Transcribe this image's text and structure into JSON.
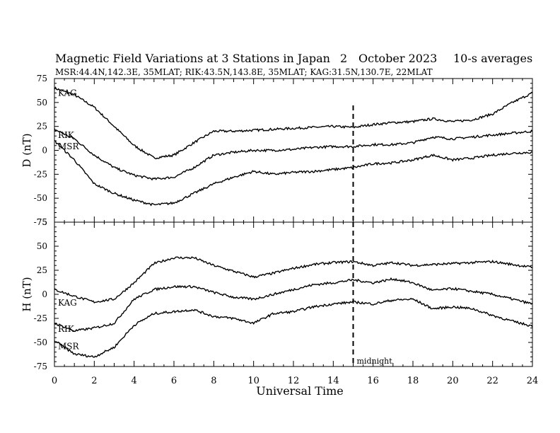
{
  "header": {
    "title": "Magnetic Field Variations at 3 Stations in Japan",
    "day": "2",
    "month_year": "October 2023",
    "averaging": "10-s averages",
    "stations_info": "MSR:44.4N,142.3E, 35MLAT;  RIK:43.5N,143.8E, 35MLAT;  KAG:31.5N,130.7E, 22MLAT"
  },
  "chart_data": [
    {
      "type": "line",
      "ylabel": "D (nT)",
      "ylim": [
        -75,
        75
      ],
      "yticks": [
        -75,
        -50,
        -25,
        0,
        25,
        50,
        75
      ],
      "xlim": [
        0,
        24
      ],
      "grid": false,
      "series": [
        {
          "name": "KAG",
          "x": [
            0,
            1,
            2,
            3,
            4,
            5,
            6,
            7,
            8,
            9,
            10,
            11,
            12,
            13,
            14,
            15,
            16,
            17,
            18,
            19,
            20,
            21,
            22,
            23,
            24
          ],
          "values": [
            65,
            58,
            45,
            25,
            5,
            -8,
            -5,
            8,
            20,
            20,
            21,
            22,
            23,
            24,
            25,
            24,
            27,
            29,
            30,
            33,
            30,
            32,
            38,
            50,
            60
          ]
        },
        {
          "name": "RIK",
          "x": [
            0,
            1,
            2,
            3,
            4,
            5,
            6,
            7,
            8,
            9,
            10,
            11,
            12,
            13,
            14,
            15,
            16,
            17,
            18,
            19,
            20,
            21,
            22,
            23,
            24
          ],
          "values": [
            22,
            12,
            -5,
            -18,
            -26,
            -30,
            -28,
            -18,
            -5,
            -2,
            0,
            0,
            1,
            3,
            4,
            4,
            6,
            6,
            8,
            14,
            12,
            14,
            16,
            18,
            20
          ]
        },
        {
          "name": "MSR",
          "x": [
            0,
            1,
            2,
            3,
            4,
            5,
            6,
            7,
            8,
            9,
            10,
            11,
            12,
            13,
            14,
            15,
            16,
            17,
            18,
            19,
            20,
            21,
            22,
            23,
            24
          ],
          "values": [
            10,
            -10,
            -35,
            -45,
            -52,
            -57,
            -55,
            -45,
            -35,
            -28,
            -22,
            -25,
            -23,
            -22,
            -20,
            -18,
            -14,
            -13,
            -10,
            -5,
            -10,
            -8,
            -5,
            -3,
            -2
          ]
        }
      ]
    },
    {
      "type": "line",
      "ylabel": "H (nT)",
      "ylim": [
        -75,
        75
      ],
      "yticks": [
        -75,
        -50,
        -25,
        0,
        25,
        50,
        75
      ],
      "xlim": [
        0,
        24
      ],
      "xticks": [
        0,
        2,
        4,
        6,
        8,
        10,
        12,
        14,
        16,
        18,
        20,
        22,
        24
      ],
      "xlabel": "Universal Time",
      "grid": false,
      "annotation": {
        "x": 15,
        "label": "midnight",
        "style": "dashed"
      },
      "series": [
        {
          "name": "KAG",
          "x": [
            0,
            1,
            2,
            3,
            4,
            5,
            6,
            7,
            8,
            9,
            10,
            11,
            12,
            13,
            14,
            15,
            16,
            17,
            18,
            19,
            20,
            21,
            22,
            23,
            24
          ],
          "values": [
            5,
            -2,
            -8,
            -5,
            12,
            32,
            38,
            38,
            30,
            24,
            18,
            22,
            27,
            31,
            33,
            34,
            30,
            33,
            30,
            31,
            32,
            33,
            34,
            31,
            28
          ]
        },
        {
          "name": "RIK",
          "x": [
            0,
            1,
            2,
            3,
            4,
            5,
            6,
            7,
            8,
            9,
            10,
            11,
            12,
            13,
            14,
            15,
            16,
            17,
            18,
            19,
            20,
            21,
            22,
            23,
            24
          ],
          "values": [
            -30,
            -38,
            -35,
            -30,
            -5,
            5,
            8,
            8,
            2,
            -3,
            -5,
            0,
            5,
            10,
            12,
            15,
            12,
            16,
            12,
            4,
            6,
            3,
            0,
            -5,
            -10
          ]
        },
        {
          "name": "MSR",
          "x": [
            0,
            1,
            2,
            3,
            4,
            5,
            6,
            7,
            8,
            9,
            10,
            11,
            12,
            13,
            14,
            15,
            16,
            17,
            18,
            19,
            20,
            21,
            22,
            23,
            24
          ],
          "values": [
            -48,
            -62,
            -65,
            -55,
            -32,
            -20,
            -18,
            -16,
            -23,
            -25,
            -30,
            -20,
            -18,
            -13,
            -10,
            -8,
            -10,
            -6,
            -5,
            -15,
            -13,
            -15,
            -22,
            -28,
            -33
          ]
        }
      ]
    }
  ]
}
